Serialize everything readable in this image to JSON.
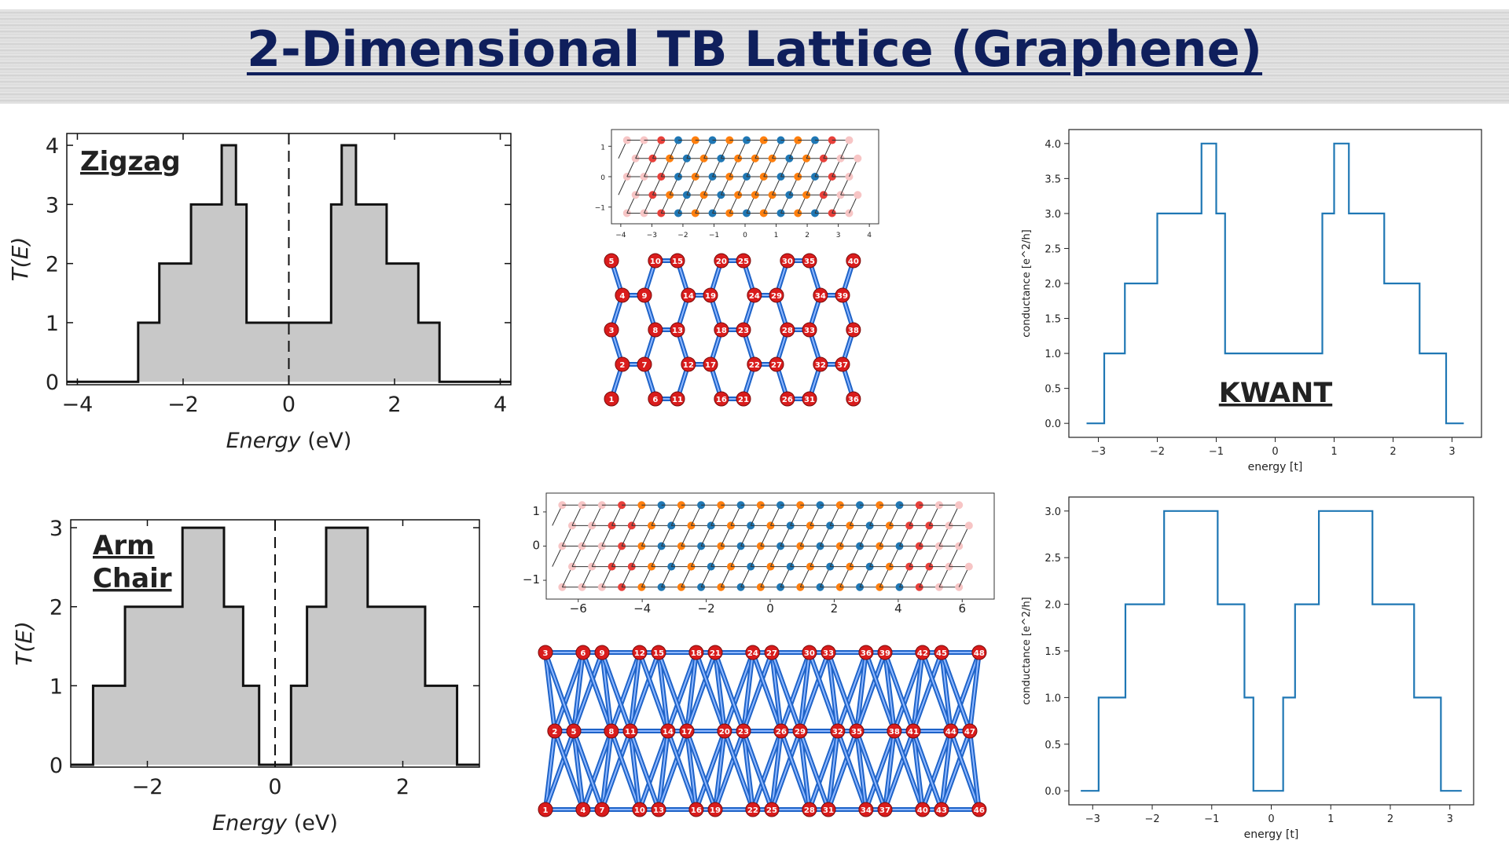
{
  "page": {
    "title": "2-Dimensional TB Lattice (Graphene)"
  },
  "colors": {
    "title": "#0f1f5c",
    "fill": "#c8c8c8",
    "kwant_line": "#1f77b4",
    "lattice_blue": "#1f77b4",
    "lattice_orange": "#ff7f0e",
    "lattice_red": "#e8403a",
    "lattice_pink": "#f7c5c5",
    "bond_blue": "#1e63c8",
    "atom_red": "#d91c1c"
  },
  "chart_data": [
    {
      "id": "zigzag-te",
      "type": "area",
      "annotation": "Zigzag",
      "xlabel": "Energy (eV)",
      "xlabel_italic_part": "Energy",
      "ylabel": "T(E)",
      "xlim": [
        -4.2,
        4.2
      ],
      "ylim": [
        -0.05,
        4.2
      ],
      "xticks": [
        -4,
        -2,
        0,
        2,
        4
      ],
      "yticks": [
        0,
        1,
        2,
        3,
        4
      ],
      "x": [
        -4.2,
        -2.85,
        -2.85,
        -2.45,
        -2.45,
        -1.85,
        -1.85,
        -1.27,
        -1.27,
        -1.0,
        -1.0,
        -0.8,
        -0.8,
        0.8,
        0.8,
        1.0,
        1.0,
        1.27,
        1.27,
        1.85,
        1.85,
        2.45,
        2.45,
        2.85,
        2.85,
        4.2
      ],
      "y": [
        0,
        0,
        1,
        1,
        2,
        2,
        3,
        3,
        4,
        4,
        3,
        3,
        1,
        1,
        3,
        3,
        4,
        4,
        3,
        3,
        2,
        2,
        1,
        1,
        0,
        0
      ]
    },
    {
      "id": "armchair-te",
      "type": "area",
      "annotation": "Arm Chair",
      "annotation_lines": [
        "Arm",
        "Chair"
      ],
      "xlabel": "Energy (eV)",
      "xlabel_italic_part": "Energy",
      "ylabel": "T(E)",
      "xlim": [
        -3.2,
        3.2
      ],
      "ylim": [
        -0.03,
        3.1
      ],
      "xticks": [
        -2,
        0,
        2
      ],
      "yticks": [
        0,
        1,
        2,
        3
      ],
      "x": [
        -3.2,
        -2.85,
        -2.85,
        -2.35,
        -2.35,
        -1.45,
        -1.45,
        -0.8,
        -0.8,
        -0.5,
        -0.5,
        -0.25,
        -0.25,
        0.25,
        0.25,
        0.5,
        0.5,
        0.8,
        0.8,
        1.45,
        1.45,
        2.35,
        2.35,
        2.85,
        2.85,
        3.2
      ],
      "y": [
        0,
        0,
        1,
        1,
        2,
        2,
        3,
        3,
        2,
        2,
        1,
        1,
        0,
        0,
        1,
        1,
        2,
        2,
        3,
        3,
        2,
        2,
        1,
        1,
        0,
        0
      ]
    },
    {
      "id": "kwant-zigzag",
      "type": "line",
      "annotation": "KWANT",
      "xlabel": "energy [t]",
      "ylabel": "conductance [e^2/h]",
      "xlim": [
        -3.5,
        3.5
      ],
      "ylim": [
        -0.2,
        4.2
      ],
      "xticks": [
        -3,
        -2,
        -1,
        0,
        1,
        2,
        3
      ],
      "xtick_labels": [
        "−3",
        "−2",
        "−1",
        "0",
        "1",
        "2",
        "3"
      ],
      "yticks": [
        0,
        0.5,
        1,
        1.5,
        2,
        2.5,
        3,
        3.5,
        4
      ],
      "ytick_labels": [
        "0.0",
        "0.5",
        "1.0",
        "1.5",
        "2.0",
        "2.5",
        "3.0",
        "3.5",
        "4.0"
      ],
      "x": [
        -3.2,
        -2.9,
        -2.9,
        -2.55,
        -2.55,
        -2.0,
        -2.0,
        -1.45,
        -1.45,
        -1.25,
        -1.25,
        -1.0,
        -1.0,
        -0.85,
        -0.85,
        0.8,
        0.8,
        1.0,
        1.0,
        1.25,
        1.25,
        1.45,
        1.45,
        1.85,
        1.85,
        2.45,
        2.45,
        2.9,
        2.9,
        3.2
      ],
      "y": [
        0,
        0,
        1,
        1,
        2,
        2,
        3,
        3,
        3,
        3,
        4,
        4,
        3,
        3,
        1,
        1,
        3,
        3,
        4,
        4,
        3,
        3,
        3,
        3,
        2,
        2,
        1,
        1,
        0,
        0
      ]
    },
    {
      "id": "kwant-armchair",
      "type": "line",
      "xlabel": "energy [t]",
      "ylabel": "conductance [e^2/h]",
      "xlim": [
        -3.4,
        3.4
      ],
      "ylim": [
        -0.15,
        3.15
      ],
      "xticks": [
        -3,
        -2,
        -1,
        0,
        1,
        2,
        3
      ],
      "xtick_labels": [
        "−3",
        "−2",
        "−1",
        "0",
        "1",
        "2",
        "3"
      ],
      "yticks": [
        0,
        0.5,
        1,
        1.5,
        2,
        2.5,
        3
      ],
      "ytick_labels": [
        "0.0",
        "0.5",
        "1.0",
        "1.5",
        "2.0",
        "2.5",
        "3.0"
      ],
      "x": [
        -3.2,
        -2.9,
        -2.9,
        -2.45,
        -2.45,
        -1.8,
        -1.8,
        -0.9,
        -0.9,
        -0.45,
        -0.45,
        -0.3,
        -0.3,
        0.2,
        0.2,
        0.4,
        0.4,
        0.8,
        0.8,
        1.7,
        1.7,
        2.4,
        2.4,
        2.85,
        2.85,
        3.2
      ],
      "y": [
        0,
        0,
        1,
        1,
        2,
        2,
        3,
        3,
        2,
        2,
        1,
        1,
        0,
        0,
        1,
        1,
        2,
        2,
        3,
        3,
        2,
        2,
        1,
        1,
        0,
        0
      ]
    },
    {
      "id": "zigzag-system-plot",
      "type": "scatter",
      "xticks": [
        -4,
        -3,
        -2,
        -1,
        0,
        1,
        2,
        3,
        4
      ],
      "yticks": [
        -1,
        0,
        1
      ],
      "xlim": [
        -4.3,
        4.3
      ],
      "ylim": [
        -1.55,
        1.55
      ]
    },
    {
      "id": "armchair-system-plot",
      "type": "scatter",
      "xticks": [
        -6,
        -4,
        -2,
        0,
        2,
        4,
        6
      ],
      "xtick_labels": [
        "−6",
        "−4",
        "−2",
        "0",
        "2",
        "4",
        "6"
      ],
      "yticks": [
        -1,
        0,
        1
      ],
      "ytick_labels": [
        "−1",
        "0",
        "1"
      ],
      "xlim": [
        -7,
        7
      ],
      "ylim": [
        -1.55,
        1.55
      ]
    }
  ],
  "lattice_zigzag": {
    "labels": [
      "1",
      "2",
      "3",
      "4",
      "5",
      "6",
      "7",
      "8",
      "9",
      "10",
      "11",
      "12",
      "13",
      "14",
      "15",
      "16",
      "17",
      "18",
      "19",
      "20",
      "21",
      "22",
      "23",
      "24",
      "25",
      "26",
      "27",
      "28",
      "29",
      "30",
      "31",
      "32",
      "33",
      "34",
      "35",
      "36",
      "37",
      "38",
      "39",
      "40"
    ]
  },
  "lattice_armchair": {
    "labels": [
      "1",
      "2",
      "3",
      "4",
      "5",
      "6",
      "7",
      "8",
      "9",
      "10",
      "11",
      "12",
      "13",
      "14",
      "15",
      "16",
      "17",
      "18",
      "19",
      "20",
      "21",
      "22",
      "23",
      "24",
      "25",
      "26",
      "27",
      "28",
      "29",
      "30",
      "31",
      "32",
      "33",
      "34",
      "35",
      "36",
      "37",
      "38",
      "39",
      "40",
      "41",
      "42",
      "43",
      "44",
      "45",
      "46",
      "47",
      "48"
    ]
  }
}
